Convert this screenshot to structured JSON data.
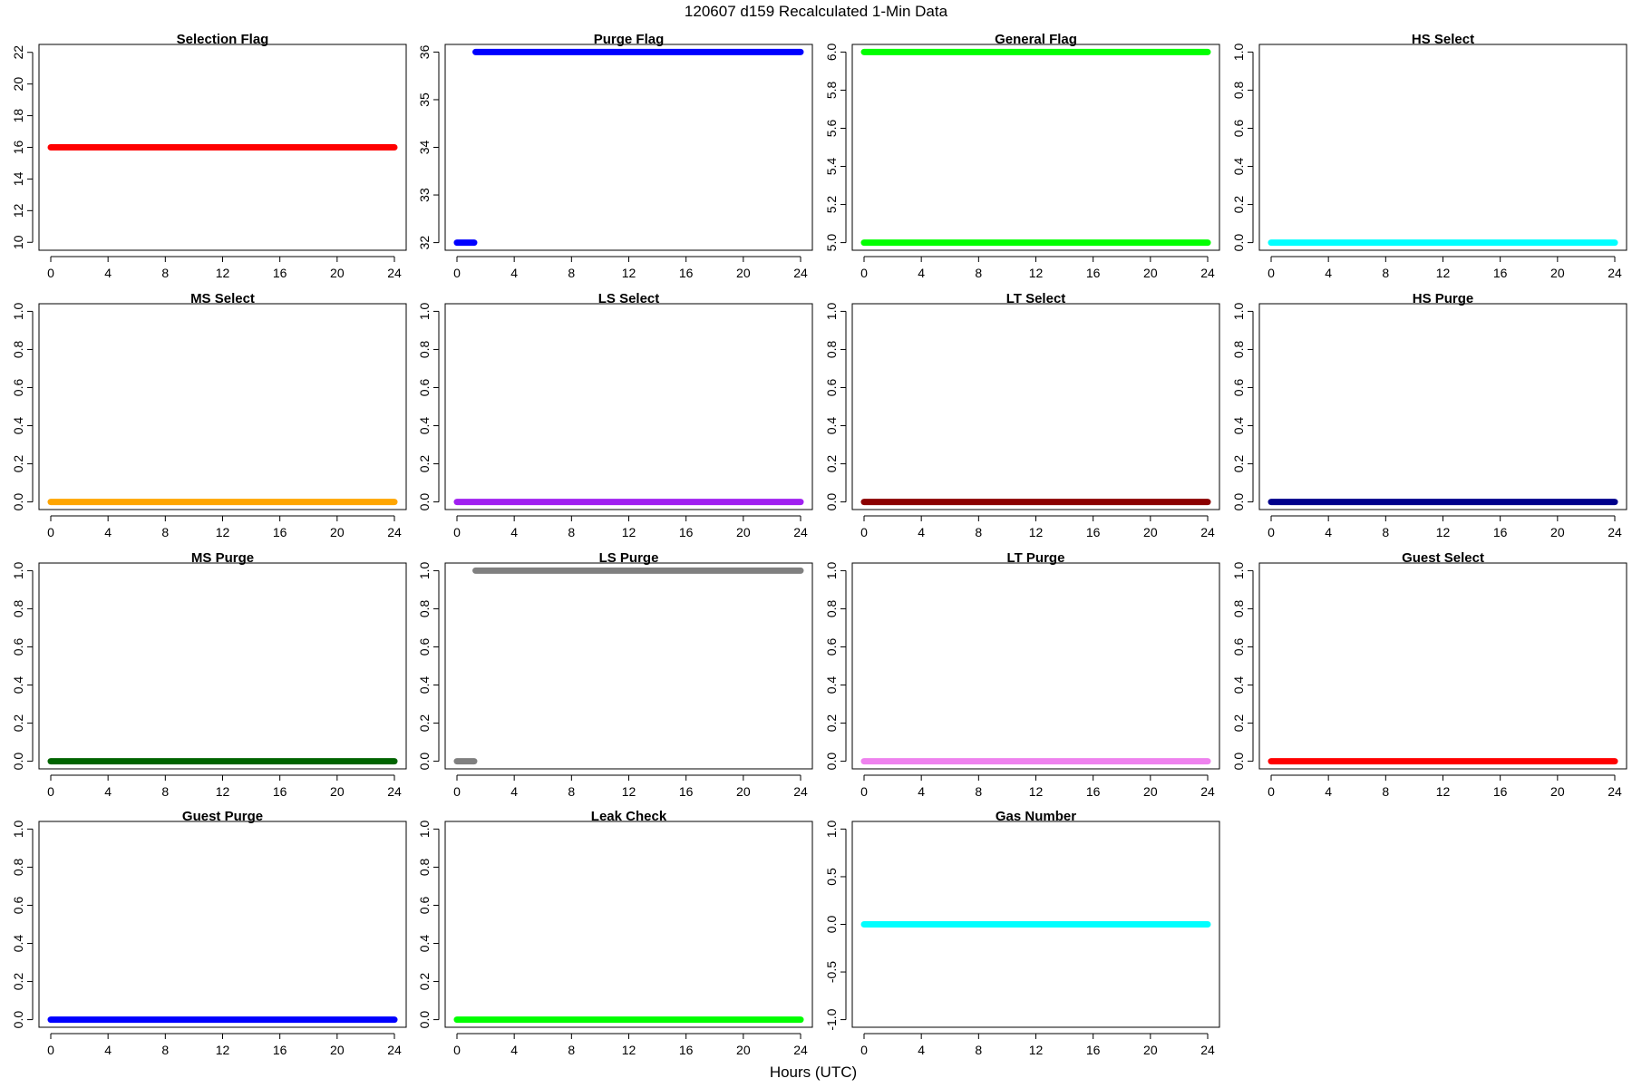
{
  "figure": {
    "title": "120607   d159   Recalculated 1-Min Data",
    "xlabel": "Hours (UTC)"
  },
  "chart_data": [
    {
      "type": "scatter",
      "title": "Selection Flag",
      "color": "#ff0000",
      "xlim": [
        0,
        24
      ],
      "xticks": [
        0,
        4,
        8,
        12,
        16,
        20,
        24
      ],
      "xtick_labels": [
        "0",
        "4",
        "8",
        "12",
        "16",
        "20",
        "24"
      ],
      "ylim": [
        9.5,
        22.5
      ],
      "yticks": [
        10,
        12,
        14,
        16,
        18,
        20,
        22
      ],
      "ytick_labels": [
        "10",
        "12",
        "14",
        "16",
        "18",
        "20",
        "22"
      ],
      "segments": [
        {
          "x": [
            0,
            24
          ],
          "y": 16
        }
      ]
    },
    {
      "type": "scatter",
      "title": "Purge Flag",
      "color": "#0000ff",
      "xlim": [
        0,
        24
      ],
      "xticks": [
        0,
        4,
        8,
        12,
        16,
        20,
        24
      ],
      "xtick_labels": [
        "0",
        "4",
        "8",
        "12",
        "16",
        "20",
        "24"
      ],
      "ylim": [
        31.84,
        36.16
      ],
      "yticks": [
        32,
        33,
        34,
        35,
        36
      ],
      "ytick_labels": [
        "32",
        "33",
        "34",
        "35",
        "36"
      ],
      "segments": [
        {
          "x": [
            0,
            1.2
          ],
          "y": 32
        },
        {
          "x": [
            1.3,
            24
          ],
          "y": 36
        }
      ]
    },
    {
      "type": "scatter",
      "title": "General Flag",
      "color": "#00ff00",
      "xlim": [
        0,
        24
      ],
      "xticks": [
        0,
        4,
        8,
        12,
        16,
        20,
        24
      ],
      "xtick_labels": [
        "0",
        "4",
        "8",
        "12",
        "16",
        "20",
        "24"
      ],
      "ylim": [
        4.96,
        6.04
      ],
      "yticks": [
        5.0,
        5.2,
        5.4,
        5.6,
        5.8,
        6.0
      ],
      "ytick_labels": [
        "5.0",
        "5.2",
        "5.4",
        "5.6",
        "5.8",
        "6.0"
      ],
      "segments": [
        {
          "x": [
            0,
            24
          ],
          "y": 6
        },
        {
          "x": [
            0,
            24
          ],
          "y": 5
        }
      ]
    },
    {
      "type": "scatter",
      "title": "HS Select",
      "color": "#00ffff",
      "xlim": [
        0,
        24
      ],
      "xticks": [
        0,
        4,
        8,
        12,
        16,
        20,
        24
      ],
      "xtick_labels": [
        "0",
        "4",
        "8",
        "12",
        "16",
        "20",
        "24"
      ],
      "ylim": [
        -0.04,
        1.04
      ],
      "yticks": [
        0,
        0.2,
        0.4,
        0.6,
        0.8,
        1.0
      ],
      "ytick_labels": [
        "0.0",
        "0.2",
        "0.4",
        "0.6",
        "0.8",
        "1.0"
      ],
      "segments": [
        {
          "x": [
            0,
            24
          ],
          "y": 0
        }
      ]
    },
    {
      "type": "scatter",
      "title": "MS Select",
      "color": "#ffa500",
      "xlim": [
        0,
        24
      ],
      "xticks": [
        0,
        4,
        8,
        12,
        16,
        20,
        24
      ],
      "xtick_labels": [
        "0",
        "4",
        "8",
        "12",
        "16",
        "20",
        "24"
      ],
      "ylim": [
        -0.04,
        1.04
      ],
      "yticks": [
        0,
        0.2,
        0.4,
        0.6,
        0.8,
        1.0
      ],
      "ytick_labels": [
        "0.0",
        "0.2",
        "0.4",
        "0.6",
        "0.8",
        "1.0"
      ],
      "segments": [
        {
          "x": [
            0,
            24
          ],
          "y": 0
        }
      ]
    },
    {
      "type": "scatter",
      "title": "LS Select",
      "color": "#a020f0",
      "xlim": [
        0,
        24
      ],
      "xticks": [
        0,
        4,
        8,
        12,
        16,
        20,
        24
      ],
      "xtick_labels": [
        "0",
        "4",
        "8",
        "12",
        "16",
        "20",
        "24"
      ],
      "ylim": [
        -0.04,
        1.04
      ],
      "yticks": [
        0,
        0.2,
        0.4,
        0.6,
        0.8,
        1.0
      ],
      "ytick_labels": [
        "0.0",
        "0.2",
        "0.4",
        "0.6",
        "0.8",
        "1.0"
      ],
      "segments": [
        {
          "x": [
            0,
            24
          ],
          "y": 0
        }
      ]
    },
    {
      "type": "scatter",
      "title": "LT Select",
      "color": "#8b0000",
      "xlim": [
        0,
        24
      ],
      "xticks": [
        0,
        4,
        8,
        12,
        16,
        20,
        24
      ],
      "xtick_labels": [
        "0",
        "4",
        "8",
        "12",
        "16",
        "20",
        "24"
      ],
      "ylim": [
        -0.04,
        1.04
      ],
      "yticks": [
        0,
        0.2,
        0.4,
        0.6,
        0.8,
        1.0
      ],
      "ytick_labels": [
        "0.0",
        "0.2",
        "0.4",
        "0.6",
        "0.8",
        "1.0"
      ],
      "segments": [
        {
          "x": [
            0,
            24
          ],
          "y": 0
        }
      ]
    },
    {
      "type": "scatter",
      "title": "HS Purge",
      "color": "#00008b",
      "xlim": [
        0,
        24
      ],
      "xticks": [
        0,
        4,
        8,
        12,
        16,
        20,
        24
      ],
      "xtick_labels": [
        "0",
        "4",
        "8",
        "12",
        "16",
        "20",
        "24"
      ],
      "ylim": [
        -0.04,
        1.04
      ],
      "yticks": [
        0,
        0.2,
        0.4,
        0.6,
        0.8,
        1.0
      ],
      "ytick_labels": [
        "0.0",
        "0.2",
        "0.4",
        "0.6",
        "0.8",
        "1.0"
      ],
      "segments": [
        {
          "x": [
            0,
            24
          ],
          "y": 0
        }
      ]
    },
    {
      "type": "scatter",
      "title": "MS Purge",
      "color": "#006400",
      "xlim": [
        0,
        24
      ],
      "xticks": [
        0,
        4,
        8,
        12,
        16,
        20,
        24
      ],
      "xtick_labels": [
        "0",
        "4",
        "8",
        "12",
        "16",
        "20",
        "24"
      ],
      "ylim": [
        -0.04,
        1.04
      ],
      "yticks": [
        0,
        0.2,
        0.4,
        0.6,
        0.8,
        1.0
      ],
      "ytick_labels": [
        "0.0",
        "0.2",
        "0.4",
        "0.6",
        "0.8",
        "1.0"
      ],
      "segments": [
        {
          "x": [
            0,
            24
          ],
          "y": 0
        }
      ]
    },
    {
      "type": "scatter",
      "title": "LS Purge",
      "color": "#808080",
      "xlim": [
        0,
        24
      ],
      "xticks": [
        0,
        4,
        8,
        12,
        16,
        20,
        24
      ],
      "xtick_labels": [
        "0",
        "4",
        "8",
        "12",
        "16",
        "20",
        "24"
      ],
      "ylim": [
        -0.04,
        1.04
      ],
      "yticks": [
        0,
        0.2,
        0.4,
        0.6,
        0.8,
        1.0
      ],
      "ytick_labels": [
        "0.0",
        "0.2",
        "0.4",
        "0.6",
        "0.8",
        "1.0"
      ],
      "segments": [
        {
          "x": [
            0,
            1.2
          ],
          "y": 0
        },
        {
          "x": [
            1.3,
            24
          ],
          "y": 1
        }
      ]
    },
    {
      "type": "scatter",
      "title": "LT Purge",
      "color": "#ee82ee",
      "xlim": [
        0,
        24
      ],
      "xticks": [
        0,
        4,
        8,
        12,
        16,
        20,
        24
      ],
      "xtick_labels": [
        "0",
        "4",
        "8",
        "12",
        "16",
        "20",
        "24"
      ],
      "ylim": [
        -0.04,
        1.04
      ],
      "yticks": [
        0,
        0.2,
        0.4,
        0.6,
        0.8,
        1.0
      ],
      "ytick_labels": [
        "0.0",
        "0.2",
        "0.4",
        "0.6",
        "0.8",
        "1.0"
      ],
      "segments": [
        {
          "x": [
            0,
            24
          ],
          "y": 0
        }
      ]
    },
    {
      "type": "scatter",
      "title": "Guest Select",
      "color": "#ff0000",
      "xlim": [
        0,
        24
      ],
      "xticks": [
        0,
        4,
        8,
        12,
        16,
        20,
        24
      ],
      "xtick_labels": [
        "0",
        "4",
        "8",
        "12",
        "16",
        "20",
        "24"
      ],
      "ylim": [
        -0.04,
        1.04
      ],
      "yticks": [
        0,
        0.2,
        0.4,
        0.6,
        0.8,
        1.0
      ],
      "ytick_labels": [
        "0.0",
        "0.2",
        "0.4",
        "0.6",
        "0.8",
        "1.0"
      ],
      "segments": [
        {
          "x": [
            0,
            24
          ],
          "y": 0
        }
      ]
    },
    {
      "type": "scatter",
      "title": "Guest Purge",
      "color": "#0000ff",
      "xlim": [
        0,
        24
      ],
      "xticks": [
        0,
        4,
        8,
        12,
        16,
        20,
        24
      ],
      "xtick_labels": [
        "0",
        "4",
        "8",
        "12",
        "16",
        "20",
        "24"
      ],
      "ylim": [
        -0.04,
        1.04
      ],
      "yticks": [
        0,
        0.2,
        0.4,
        0.6,
        0.8,
        1.0
      ],
      "ytick_labels": [
        "0.0",
        "0.2",
        "0.4",
        "0.6",
        "0.8",
        "1.0"
      ],
      "segments": [
        {
          "x": [
            0,
            24
          ],
          "y": 0
        }
      ]
    },
    {
      "type": "scatter",
      "title": "Leak Check",
      "color": "#00ff00",
      "xlim": [
        0,
        24
      ],
      "xticks": [
        0,
        4,
        8,
        12,
        16,
        20,
        24
      ],
      "xtick_labels": [
        "0",
        "4",
        "8",
        "12",
        "16",
        "20",
        "24"
      ],
      "ylim": [
        -0.04,
        1.04
      ],
      "yticks": [
        0,
        0.2,
        0.4,
        0.6,
        0.8,
        1.0
      ],
      "ytick_labels": [
        "0.0",
        "0.2",
        "0.4",
        "0.6",
        "0.8",
        "1.0"
      ],
      "segments": [
        {
          "x": [
            0,
            24
          ],
          "y": 0
        }
      ]
    },
    {
      "type": "scatter",
      "title": "Gas Number",
      "color": "#00ffff",
      "xlim": [
        0,
        24
      ],
      "xticks": [
        0,
        4,
        8,
        12,
        16,
        20,
        24
      ],
      "xtick_labels": [
        "0",
        "4",
        "8",
        "12",
        "16",
        "20",
        "24"
      ],
      "ylim": [
        -1.08,
        1.08
      ],
      "yticks": [
        -1.0,
        -0.5,
        0,
        0.5,
        1.0
      ],
      "ytick_labels": [
        "-1.0",
        "-0.5",
        "0.0",
        "0.5",
        "1.0"
      ],
      "segments": [
        {
          "x": [
            0,
            24
          ],
          "y": 0
        }
      ]
    }
  ]
}
